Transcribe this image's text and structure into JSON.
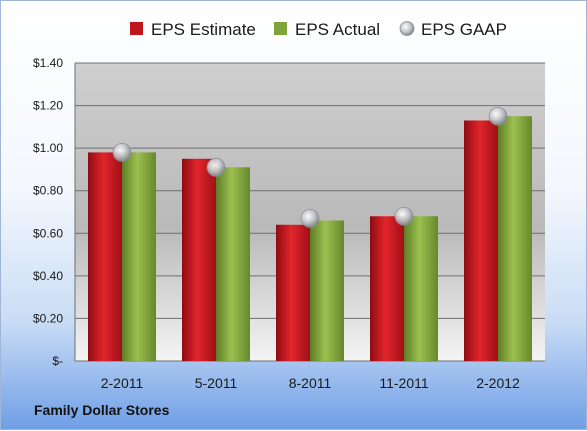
{
  "company": "Family Dollar Stores",
  "colors": {
    "estimate": "#c0151c",
    "actual": "#7ea33a",
    "gaap": "#b8bcc2"
  },
  "chart_data": {
    "type": "bar",
    "categories": [
      "2-2011",
      "5-2011",
      "8-2011",
      "11-2011",
      "2-2012"
    ],
    "series": [
      {
        "name": "EPS Estimate",
        "kind": "bar",
        "values": [
          0.98,
          0.95,
          0.64,
          0.68,
          1.13
        ]
      },
      {
        "name": "EPS Actual",
        "kind": "bar",
        "values": [
          0.98,
          0.91,
          0.66,
          0.68,
          1.15
        ]
      },
      {
        "name": "EPS GAAP",
        "kind": "marker",
        "values": [
          0.98,
          0.91,
          0.67,
          0.68,
          1.15
        ]
      }
    ],
    "ylim": [
      0,
      1.4
    ],
    "yticks": [
      0,
      0.2,
      0.4,
      0.6,
      0.8,
      1.0,
      1.2,
      1.4
    ],
    "ytick_labels": [
      "$-",
      "$0.20",
      "$0.40",
      "$0.60",
      "$0.80",
      "$1.00",
      "$1.20",
      "$1.40"
    ],
    "grid": true,
    "legend": "top"
  }
}
